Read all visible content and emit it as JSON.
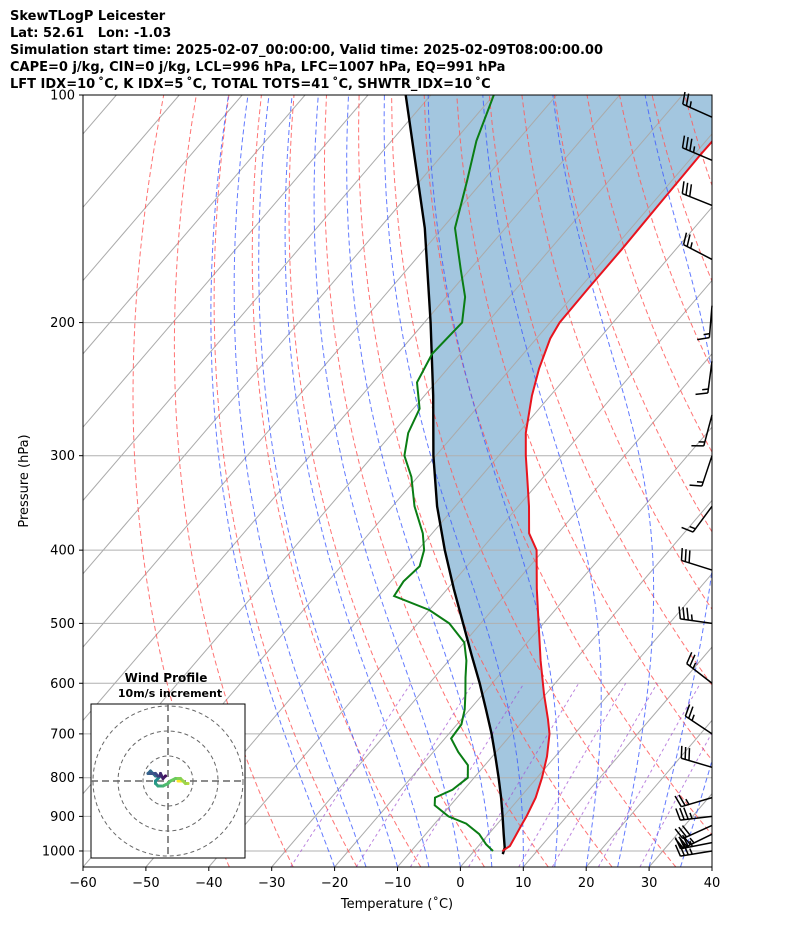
{
  "header": {
    "title": "SkewTLogP Leicester",
    "location": "Lat: 52.61   Lon: -1.03",
    "times": "Simulation start time: 2025-02-07_00:00:00, Valid time: 2025-02-09T08:00:00.00",
    "indices1": "CAPE=0 j/kg, CIN=0 j/kg, LCL=996 hPa, LFC=1007 hPa, EQ=991 hPa",
    "indices2": "LFT IDX=10 ˚C, K IDX=5 ˚C, TOTAL TOTS=41 ˚C, SHWTR_IDX=10 ˚C"
  },
  "chart_data": {
    "type": "skewt-logp",
    "xlabel": "Temperature (˚C)",
    "ylabel": "Pressure (hPa)",
    "xlim": [
      -60,
      40
    ],
    "ylim_hpa": [
      1050,
      100
    ],
    "x_ticks": [
      -60,
      -50,
      -40,
      -30,
      -20,
      -10,
      0,
      10,
      20,
      30,
      40
    ],
    "x_tick_labels": [
      "−60",
      "−50",
      "−40",
      "−30",
      "−20",
      "−10",
      "0",
      "10",
      "20",
      "30",
      "40"
    ],
    "p_ticks": [
      1000,
      900,
      800,
      700,
      600,
      500,
      400,
      300,
      200,
      100
    ],
    "grid": true,
    "colors": {
      "temperature": "#e8141e",
      "dewpoint": "#0a7d14",
      "parcel": "#000000",
      "shade": "#a3c6df",
      "dry_adiabat": "#ff5a5a",
      "moist_adiabat": "#3c5aff",
      "mixing_ratio": "#a050d2",
      "isotherm": "#aaaaaa"
    },
    "temperature_profile": {
      "pressure": [
        1000,
        985,
        960,
        925,
        900,
        850,
        800,
        750,
        700,
        670,
        620,
        560,
        500,
        450,
        400,
        380,
        350,
        320,
        300,
        280,
        250,
        230,
        210,
        200,
        180,
        160,
        140,
        120,
        100
      ],
      "temp": [
        4.5,
        5.0,
        4.6,
        4.0,
        3.6,
        2.5,
        0.8,
        -1.3,
        -4.0,
        -6.2,
        -10.3,
        -15.4,
        -20.8,
        -25.8,
        -31.1,
        -34.6,
        -38.3,
        -42.6,
        -45.7,
        -48.8,
        -52.9,
        -55.5,
        -57.8,
        -58.5,
        -58.6,
        -58.6,
        -58.8,
        -59.0,
        -58.8
      ]
    },
    "dewpoint_profile": {
      "pressure": [
        1000,
        980,
        950,
        920,
        900,
        870,
        850,
        830,
        800,
        770,
        740,
        710,
        680,
        650,
        620,
        590,
        560,
        530,
        500,
        480,
        460,
        440,
        420,
        400,
        380,
        350,
        320,
        300,
        280,
        260,
        240,
        220,
        200,
        185,
        170,
        150,
        130,
        115,
        100
      ],
      "dewpoint": [
        3.0,
        1.0,
        -1.5,
        -5.0,
        -8.8,
        -12.5,
        -13.5,
        -11.8,
        -11.0,
        -12.7,
        -16.0,
        -19.0,
        -19.3,
        -20.8,
        -22.8,
        -25.0,
        -27.2,
        -30.0,
        -35.0,
        -40.0,
        -47.5,
        -48.0,
        -47.5,
        -49.0,
        -51.5,
        -56.5,
        -61.0,
        -65.0,
        -67.5,
        -69.0,
        -73.0,
        -74.5,
        -74.0,
        -77.0,
        -81.5,
        -88.0,
        -92.5,
        -96.5,
        -100.0
      ]
    },
    "parcel_profile": {
      "pressure": [
        1010,
        990,
        950,
        900,
        850,
        800,
        750,
        700,
        650,
        600,
        550,
        500,
        450,
        400,
        350,
        300,
        250,
        200,
        150,
        100
      ],
      "temp": [
        5.0,
        4.4,
        2.4,
        -0.2,
        -3.0,
        -6.1,
        -9.5,
        -13.2,
        -17.4,
        -22.0,
        -27.2,
        -32.8,
        -39.0,
        -45.7,
        -52.9,
        -60.4,
        -68.6,
        -79.0,
        -92.8,
        -114.0
      ]
    },
    "wind_barbs": [
      {
        "pressure": 1000,
        "u_ms": -17.1,
        "v_ms": -2.8
      },
      {
        "pressure": 975,
        "u_ms": -17.5,
        "v_ms": -3.4
      },
      {
        "pressure": 950,
        "u_ms": -15.8,
        "v_ms": -7.7
      },
      {
        "pressure": 925,
        "u_ms": -15.1,
        "v_ms": -6.8
      },
      {
        "pressure": 900,
        "u_ms": -18.0,
        "v_ms": -2.1
      },
      {
        "pressure": 850,
        "u_ms": -13.2,
        "v_ms": -3.9
      },
      {
        "pressure": 775,
        "u_ms": -14.6,
        "v_ms": 4.3
      },
      {
        "pressure": 700,
        "u_ms": -11.5,
        "v_ms": 7.7
      },
      {
        "pressure": 600,
        "u_ms": -10.8,
        "v_ms": 8.4
      },
      {
        "pressure": 500,
        "u_ms": -17.5,
        "v_ms": 2.5
      },
      {
        "pressure": 425,
        "u_ms": -15.5,
        "v_ms": 4.9
      },
      {
        "pressure": 350,
        "u_ms": -5.0,
        "v_ms": -6.8
      },
      {
        "pressure": 300,
        "u_ms": -2.6,
        "v_ms": -7.8
      },
      {
        "pressure": 265,
        "u_ms": -2.1,
        "v_ms": -7.9
      },
      {
        "pressure": 225,
        "u_ms": -1.0,
        "v_ms": -7.6
      },
      {
        "pressure": 190,
        "u_ms": -0.7,
        "v_ms": -8.5
      },
      {
        "pressure": 165,
        "u_ms": -11.2,
        "v_ms": 5.8
      },
      {
        "pressure": 140,
        "u_ms": -14.0,
        "v_ms": 5.6
      },
      {
        "pressure": 122,
        "u_ms": -17.0,
        "v_ms": 7.2
      },
      {
        "pressure": 107,
        "u_ms": -12.5,
        "v_ms": 5.6
      }
    ],
    "hodograph": {
      "title": "Wind Profile",
      "subtitle": "10m/s increment",
      "ring_step_ms": 10,
      "u": [
        4,
        6,
        7,
        8,
        7,
        5,
        3,
        1,
        0,
        -2,
        -3,
        -4,
        -5,
        -5,
        -4,
        -3,
        -5,
        -7,
        -8,
        -7,
        -5,
        -4,
        -3,
        -3,
        -2,
        -1,
        -1
      ],
      "v": [
        0,
        0,
        -1,
        -1,
        -1,
        1,
        1,
        0,
        -1,
        -2,
        -2,
        -2,
        -1,
        0,
        1,
        2,
        2,
        4,
        3,
        3,
        3,
        2,
        2,
        3,
        1,
        2,
        2
      ]
    }
  }
}
